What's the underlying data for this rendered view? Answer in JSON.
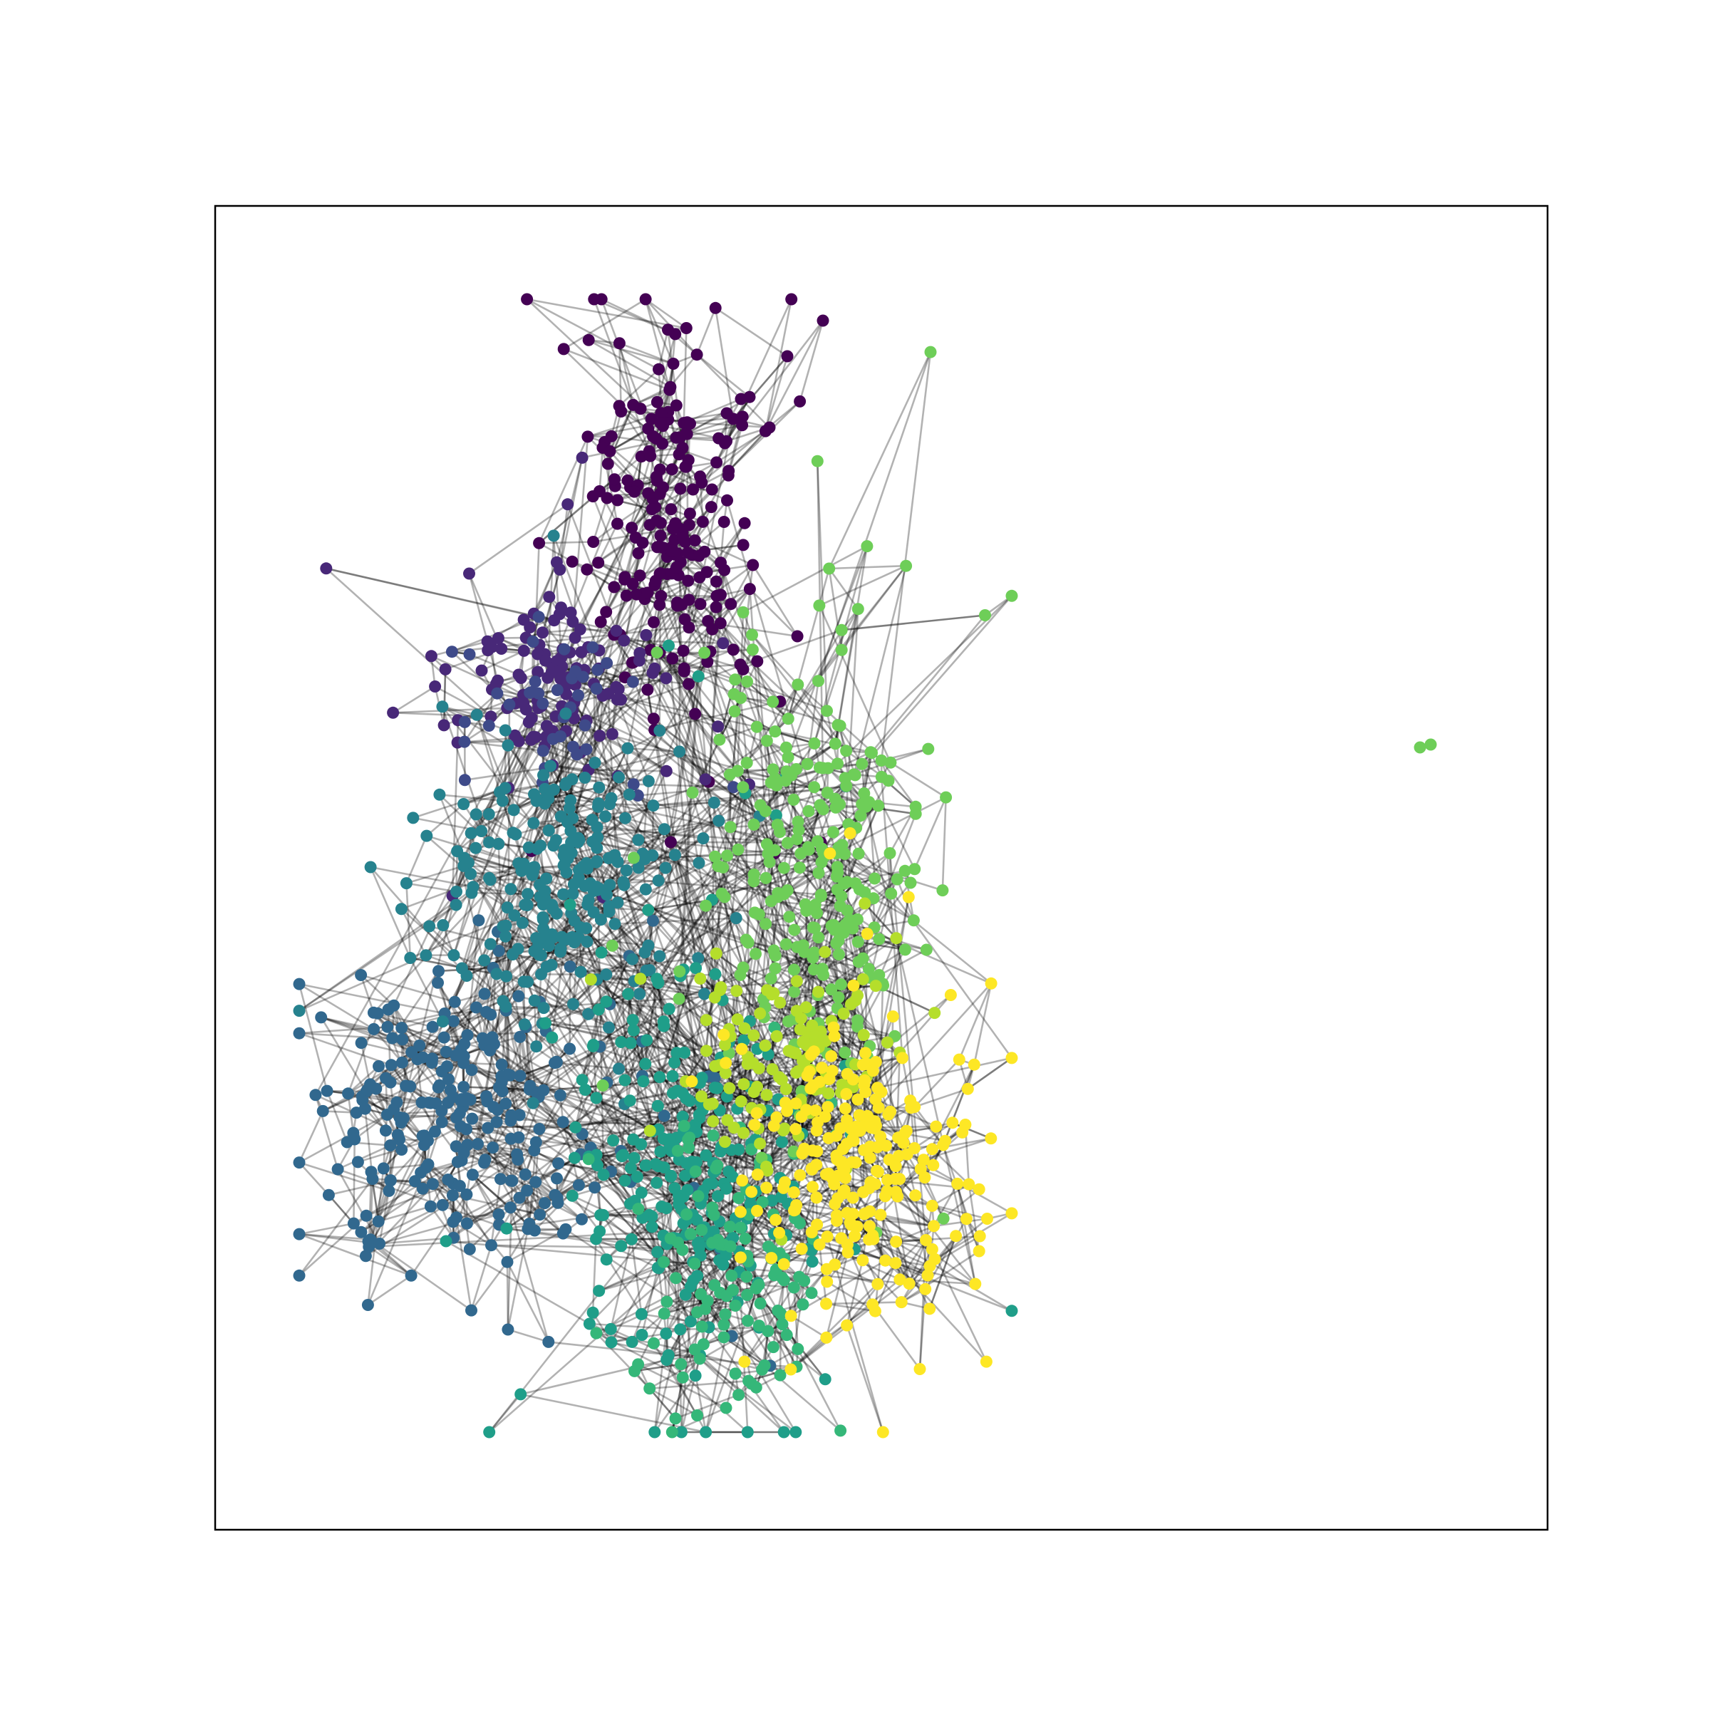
{
  "graph": {
    "type": "network-graph",
    "layout": "force-directed",
    "axes_frame": true,
    "ticks": false,
    "node_colormap": "viridis",
    "edge_color": "#000000",
    "edge_opacity": 0.3,
    "communities": [
      {
        "id": 0,
        "color": "#440154",
        "approx_node_share": "large"
      },
      {
        "id": 1,
        "color": "#482878",
        "approx_node_share": "medium"
      },
      {
        "id": 2,
        "color": "#3e4a89",
        "approx_node_share": "large"
      },
      {
        "id": 3,
        "color": "#31688e",
        "approx_node_share": "large"
      },
      {
        "id": 4,
        "color": "#26828e",
        "approx_node_share": "large"
      },
      {
        "id": 5,
        "color": "#1f9e89",
        "approx_node_share": "large"
      },
      {
        "id": 6,
        "color": "#35b779",
        "approx_node_share": "medium"
      },
      {
        "id": 7,
        "color": "#6ece58",
        "approx_node_share": "large"
      },
      {
        "id": 8,
        "color": "#b5de2b",
        "approx_node_share": "medium"
      },
      {
        "id": 9,
        "color": "#fde725",
        "approx_node_share": "large"
      }
    ],
    "isolated_components": [
      {
        "nodes": 2,
        "color": "#6ece58"
      }
    ]
  }
}
